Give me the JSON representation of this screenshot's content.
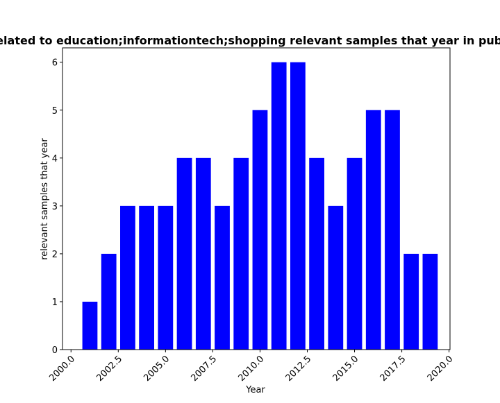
{
  "chart_data": {
    "type": "bar",
    "title": "Trends related to education;informationtech;shopping relevant samples that year in publications",
    "xlabel": "Year",
    "ylabel": "relevant samples that year",
    "x": [
      2001,
      2002,
      2003,
      2004,
      2005,
      2006,
      2007,
      2008,
      2009,
      2010,
      2011,
      2012,
      2013,
      2014,
      2015,
      2016,
      2017,
      2018,
      2019
    ],
    "values": [
      1,
      2,
      3,
      3,
      3,
      4,
      4,
      3,
      4,
      5,
      6,
      6,
      4,
      3,
      4,
      5,
      5,
      2,
      2
    ],
    "xlim": [
      1999.55,
      2020.05
    ],
    "ylim": [
      0,
      6.3
    ],
    "xticks": [
      2000.0,
      2002.5,
      2005.0,
      2007.5,
      2010.0,
      2012.5,
      2015.0,
      2017.5,
      2020.0
    ],
    "xtick_labels": [
      "2000.0",
      "2002.5",
      "2005.0",
      "2007.5",
      "2010.0",
      "2012.5",
      "2015.0",
      "2017.5",
      "2020.0"
    ],
    "yticks": [
      0,
      1,
      2,
      3,
      4,
      5,
      6
    ],
    "ytick_labels": [
      "0",
      "1",
      "2",
      "3",
      "4",
      "5",
      "6"
    ],
    "bar_color": "#0000ff",
    "grid": false,
    "legend": "none"
  }
}
